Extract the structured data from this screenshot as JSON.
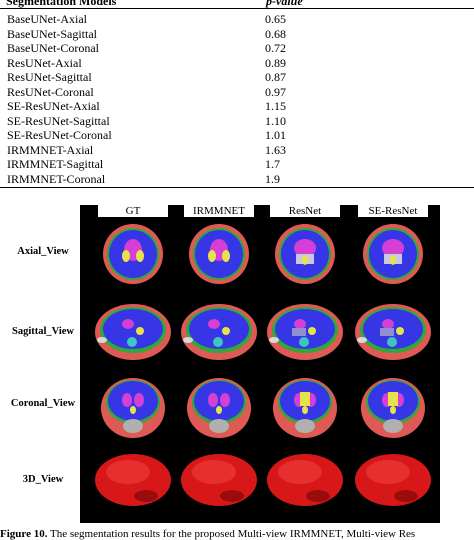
{
  "table": {
    "header": {
      "col1": "Segmentation Models",
      "col2": "p-value"
    },
    "rows": [
      {
        "name": "BaseUNet-Axial",
        "value": "0.65"
      },
      {
        "name": "BaseUNet-Sagittal",
        "value": "0.68"
      },
      {
        "name": "BaseUNet-Coronal",
        "value": "0.72"
      },
      {
        "name": "ResUNet-Axial",
        "value": "0.89"
      },
      {
        "name": "ResUNet-Sagittal",
        "value": "0.87"
      },
      {
        "name": "ResUNet-Coronal",
        "value": "0.97"
      },
      {
        "name": "SE-ResUNet-Axial",
        "value": "1.15"
      },
      {
        "name": "SE-ResUNet-Sagittal",
        "value": "1.10"
      },
      {
        "name": "SE-ResUNet-Coronal",
        "value": "1.01"
      },
      {
        "name": "IRMMNET-Axial",
        "value": "1.63"
      },
      {
        "name": "IRMMNET-Sagittal",
        "value": "1.7"
      },
      {
        "name": "IRMMNET-Coronal",
        "value": "1.9"
      }
    ]
  },
  "figure": {
    "columns": [
      "GT",
      "IRMMNET",
      "ResNet",
      "SE-ResNet"
    ],
    "rows": [
      "Axial_View",
      "Sagittal_View",
      "Coronal_View",
      "3D_View"
    ],
    "colors": {
      "background": "#000000",
      "skull": "#e05a55",
      "white_matter": "#3636e6",
      "gray_matter": "#2faa3a",
      "ventricles": "#d63fd6",
      "deep_gray": "#e8e24a",
      "brainstem": "#3fc6c0",
      "render_3d": "#d81818"
    }
  },
  "caption": {
    "label": "Figure 10.",
    "text": " The segmentation results for the proposed Multi-view IRMMNET, Multi-view Res"
  }
}
